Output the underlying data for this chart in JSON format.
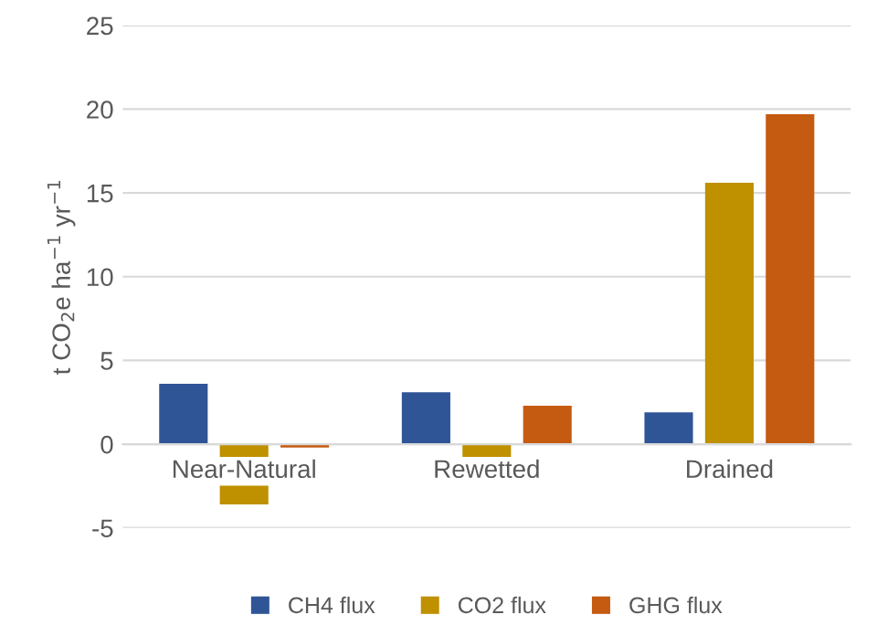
{
  "chart_data": {
    "type": "bar",
    "ylabel": "t CO$_{2}$e ha$^{−1}$ yr$^{−1}$",
    "categories": [
      "Near-Natural",
      "Rewetted",
      "Drained"
    ],
    "series": [
      {
        "name": "CH4 flux",
        "color": "#2f5597",
        "values": [
          3.6,
          3.1,
          1.9
        ]
      },
      {
        "name": "CO2 flux",
        "color": "#bf9000",
        "values": [
          -3.6,
          -0.8,
          15.6
        ]
      },
      {
        "name": "GHG flux",
        "color": "#c55a11",
        "values": [
          -0.2,
          2.3,
          19.7
        ]
      }
    ],
    "ylim": [
      -5,
      25
    ],
    "yticks": [
      -5,
      0,
      5,
      10,
      15,
      20,
      25
    ],
    "grid": "y",
    "legend": "bottom"
  }
}
